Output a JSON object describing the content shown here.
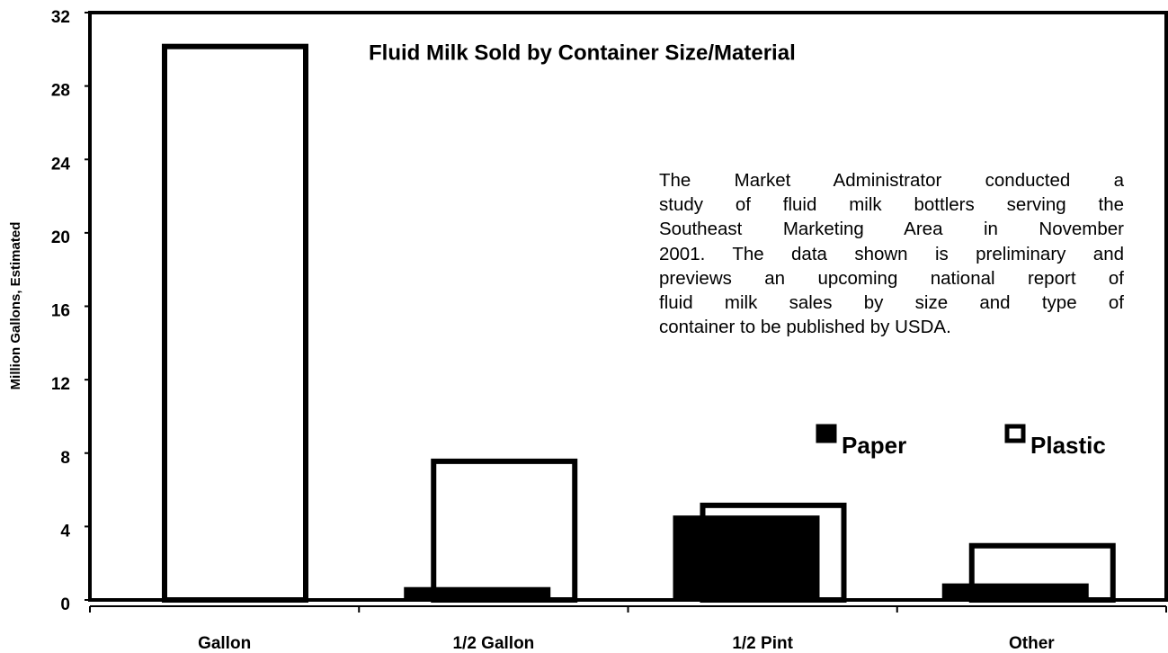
{
  "chart_data": {
    "type": "bar",
    "title": "Fluid Milk Sold by Container Size/Material",
    "y_label": "Million Gallons, Estimated",
    "annotation": [
      "The Market Administrator conducted a",
      "study of fluid milk bottlers serving the",
      "Southeast Marketing Area in November",
      "2001.  The data shown is preliminary and",
      "previews an upcoming national report of",
      "fluid milk sales by size and type of",
      "container to be published by USDA."
    ],
    "categories": [
      "Gallon",
      "1/2 Gallon",
      "1/2 Pint",
      "Other"
    ],
    "series": [
      {
        "name": "Paper",
        "color": "#000000",
        "values": [
          0,
          0.7,
          4.6,
          0.9
        ]
      },
      {
        "name": "Plastic",
        "color": "#ffffff",
        "values": [
          30.3,
          7.7,
          5.3,
          3.1
        ]
      }
    ],
    "ylim": [
      0,
      32
    ],
    "yticks": [
      0,
      4,
      8,
      12,
      16,
      20,
      24,
      28,
      32
    ]
  }
}
